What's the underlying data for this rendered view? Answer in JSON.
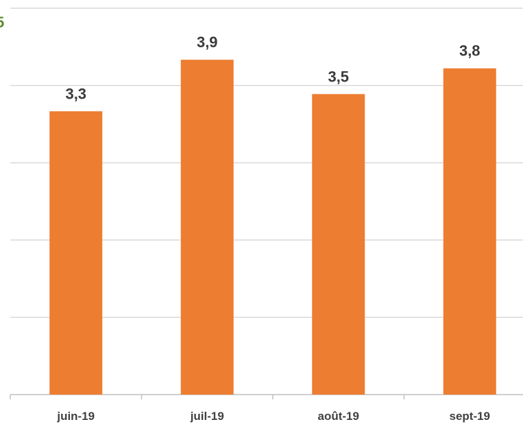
{
  "chart_data": {
    "type": "bar",
    "categories": [
      "juin-19",
      "juil-19",
      "août-19",
      "sept-19"
    ],
    "values": [
      3.3,
      3.9,
      3.5,
      3.8
    ],
    "data_labels": [
      "3,3",
      "3,9",
      "3,5",
      "3,8"
    ],
    "ylim": [
      0,
      4.5
    ],
    "grid": true,
    "gridlines": [
      0.9,
      1.8,
      2.7,
      3.6,
      4.5
    ],
    "bar_color": "#ED7D31",
    "title": "",
    "xlabel": "",
    "ylabel": ""
  },
  "corner_text": "5",
  "colors": {
    "grid": "#d9d9d9",
    "axis": "#bfbfbf",
    "corner_text": "#5a8a2a"
  }
}
